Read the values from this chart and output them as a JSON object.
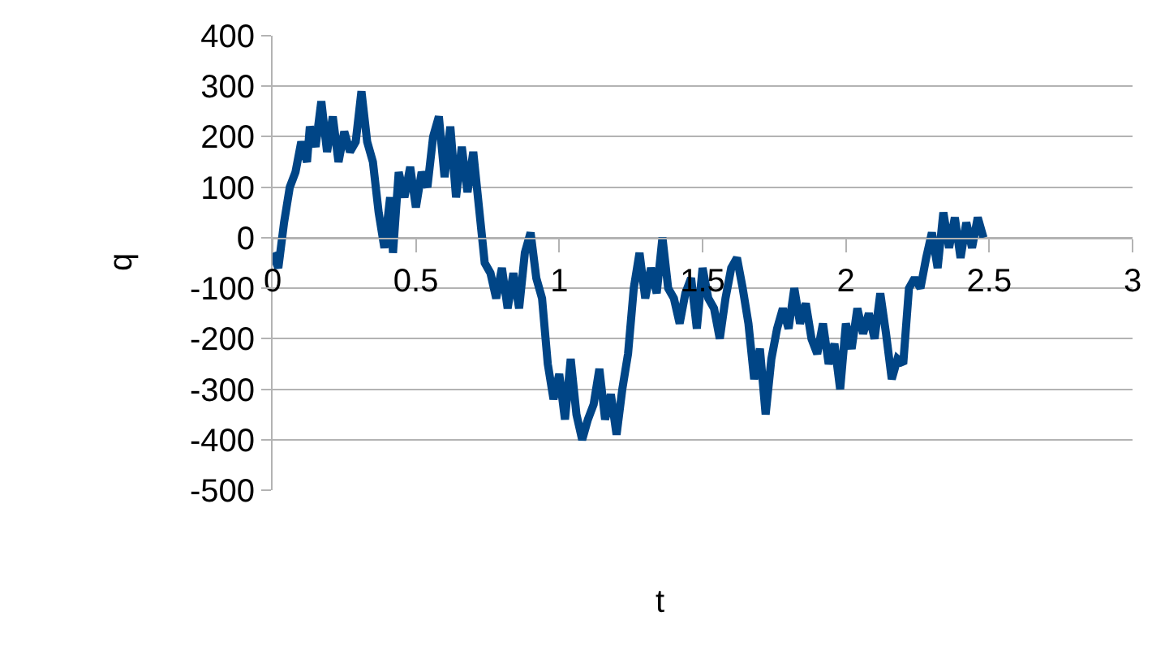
{
  "chart_data": {
    "type": "line",
    "xlabel": "t",
    "ylabel": "q",
    "xlim": [
      0,
      3
    ],
    "xticks": [
      0,
      0.5,
      1,
      1.5,
      2,
      2.5,
      3
    ],
    "ylim": [
      -500,
      400
    ],
    "yticks": [
      -500,
      -400,
      -300,
      -200,
      -100,
      0,
      100,
      200,
      300,
      400
    ],
    "grid": "y",
    "marker": "none",
    "line_style": "solid",
    "series": [
      {
        "color": "#004586",
        "x": [
          0,
          0.02,
          0.04,
          0.06,
          0.08,
          0.1,
          0.12,
          0.13,
          0.15,
          0.17,
          0.19,
          0.21,
          0.23,
          0.25,
          0.27,
          0.29,
          0.31,
          0.33,
          0.35,
          0.37,
          0.39,
          0.41,
          0.42,
          0.44,
          0.46,
          0.48,
          0.5,
          0.52,
          0.54,
          0.56,
          0.58,
          0.6,
          0.62,
          0.64,
          0.66,
          0.68,
          0.7,
          0.72,
          0.74,
          0.76,
          0.78,
          0.8,
          0.82,
          0.84,
          0.86,
          0.88,
          0.9,
          0.92,
          0.94,
          0.96,
          0.98,
          1.0,
          1.02,
          1.04,
          1.06,
          1.08,
          1.1,
          1.12,
          1.14,
          1.16,
          1.18,
          1.2,
          1.22,
          1.24,
          1.26,
          1.28,
          1.3,
          1.32,
          1.34,
          1.36,
          1.38,
          1.4,
          1.42,
          1.44,
          1.46,
          1.48,
          1.5,
          1.52,
          1.54,
          1.56,
          1.58,
          1.6,
          1.62,
          1.64,
          1.66,
          1.68,
          1.7,
          1.72,
          1.74,
          1.76,
          1.78,
          1.8,
          1.82,
          1.84,
          1.86,
          1.88,
          1.9,
          1.92,
          1.94,
          1.96,
          1.98,
          2.0,
          2.02,
          2.04,
          2.06,
          2.08,
          2.1,
          2.12,
          2.14,
          2.16,
          2.18,
          2.2,
          2.22,
          2.24,
          2.26,
          2.28,
          2.3,
          2.32,
          2.34,
          2.36,
          2.38,
          2.4,
          2.42,
          2.44,
          2.46,
          2.48
        ],
        "values": [
          -30,
          -60,
          30,
          100,
          130,
          190,
          150,
          220,
          180,
          270,
          170,
          240,
          150,
          210,
          170,
          190,
          290,
          190,
          150,
          50,
          -20,
          80,
          -30,
          130,
          80,
          140,
          60,
          130,
          100,
          200,
          240,
          120,
          220,
          80,
          180,
          90,
          170,
          60,
          -50,
          -70,
          -120,
          -60,
          -140,
          -70,
          -140,
          -30,
          10,
          -80,
          -120,
          -250,
          -320,
          -270,
          -360,
          -240,
          -350,
          -400,
          -360,
          -330,
          -260,
          -360,
          -310,
          -390,
          -300,
          -230,
          -100,
          -30,
          -120,
          -60,
          -110,
          0,
          -100,
          -120,
          -170,
          -110,
          -80,
          -180,
          -60,
          -120,
          -140,
          -200,
          -120,
          -60,
          -40,
          -100,
          -170,
          -280,
          -220,
          -350,
          -240,
          -180,
          -140,
          -180,
          -100,
          -170,
          -130,
          -200,
          -230,
          -170,
          -250,
          -210,
          -300,
          -170,
          -220,
          -140,
          -190,
          -150,
          -200,
          -110,
          -190,
          -280,
          -240,
          -250,
          -100,
          -80,
          -100,
          -40,
          10,
          -60,
          50,
          -20,
          40,
          -40,
          30,
          -20,
          40,
          0
        ]
      }
    ]
  }
}
